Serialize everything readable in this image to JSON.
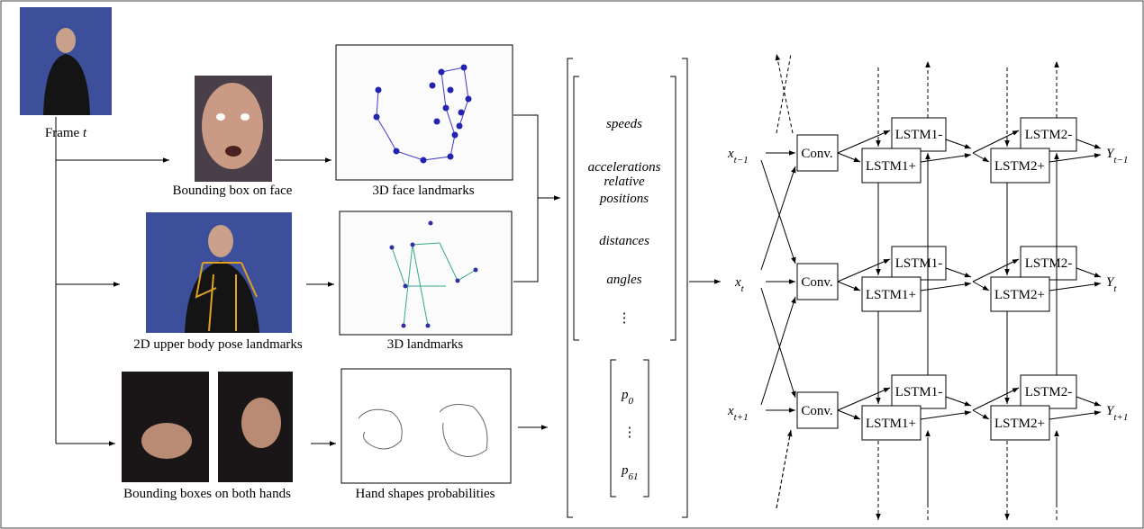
{
  "captions": {
    "frame": {
      "text": "Frame",
      "var": "t"
    },
    "face_box": "Bounding box on face",
    "face_landmarks": "3D face landmarks",
    "body_pose": "2D upper body pose landmarks",
    "landmarks_3d": "3D landmarks",
    "hand_boxes": "Bounding boxes on both hands",
    "hand_shapes": "Hand shapes probabilities"
  },
  "features": [
    "speeds",
    "accelerations",
    [
      "relative",
      "positions"
    ],
    "distances",
    "angles",
    "⋮"
  ],
  "hand_probs": [
    {
      "base": "p",
      "sub": "0"
    },
    "⋮",
    {
      "base": "p",
      "sub": "61"
    }
  ],
  "inputs": [
    {
      "base": "x",
      "sub": "t−1"
    },
    {
      "base": "x",
      "sub": "t"
    },
    {
      "base": "x",
      "sub": "t+1"
    }
  ],
  "conv": "Conv.",
  "lstm": {
    "l1_back": "LSTM1-",
    "l1_fwd": "LSTM1+",
    "l2_back": "LSTM2-",
    "l2_fwd": "LSTM2+"
  },
  "outputs": [
    {
      "base": "Y",
      "sub": "t−1"
    },
    {
      "base": "Y",
      "sub": "t"
    },
    {
      "base": "Y",
      "sub": "t+1"
    }
  ]
}
